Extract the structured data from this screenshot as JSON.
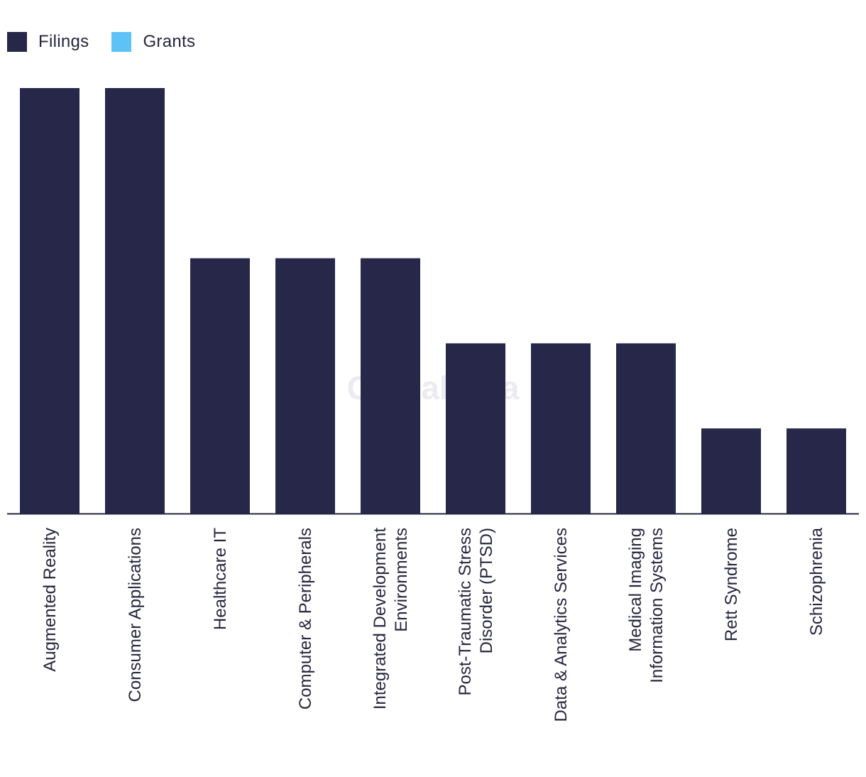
{
  "legend": {
    "items": [
      {
        "label": "Filings",
        "color": "#27274a"
      },
      {
        "label": "Grants",
        "color": "#5ec2f6"
      }
    ]
  },
  "watermark": "GlobalData",
  "colors": {
    "filings": "#27274a",
    "grants": "#5ec2f6",
    "axis": "#26263f",
    "tick_text": "#26263f"
  },
  "chart_data": {
    "type": "bar",
    "categories": [
      "Augmented Reality",
      "Consumer Applications",
      "Healthcare IT",
      "Computer & Peripherals",
      "Integrated Development Environments",
      "Post-Traumatic Stress Disorder (PTSD)",
      "Data & Analytics Services",
      "Medical Imaging Information Systems",
      "Rett Syndrome",
      "Schizophrenia"
    ],
    "category_lines": [
      [
        "Augmented Reality"
      ],
      [
        "Consumer Applications"
      ],
      [
        "Healthcare IT"
      ],
      [
        "Computer & Peripherals"
      ],
      [
        "Integrated Development",
        "Environments"
      ],
      [
        "Post-Traumatic Stress",
        "Disorder (PTSD)"
      ],
      [
        "Data & Analytics Services"
      ],
      [
        "Medical Imaging",
        "Information Systems"
      ],
      [
        "Rett Syndrome"
      ],
      [
        "Schizophrenia"
      ]
    ],
    "series": [
      {
        "name": "Filings",
        "values": [
          5,
          5,
          3,
          3,
          3,
          2,
          2,
          2,
          1,
          1
        ]
      },
      {
        "name": "Grants",
        "values": [
          0,
          0,
          0,
          0,
          0,
          0,
          0,
          0,
          0,
          0
        ]
      }
    ],
    "ylim": [
      0,
      5
    ],
    "grid": false,
    "legend_position": "top-left",
    "title": "",
    "xlabel": "",
    "ylabel": ""
  }
}
